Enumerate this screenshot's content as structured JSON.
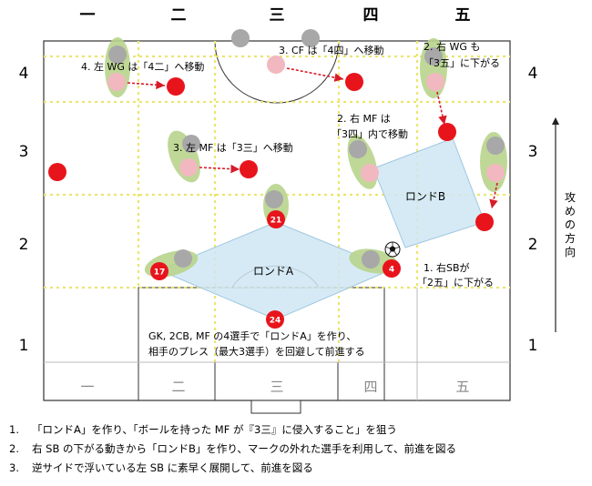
{
  "columns": [
    "一",
    "二",
    "三",
    "四",
    "五"
  ],
  "bottom_columns": [
    "一",
    "二",
    "三",
    "四",
    "五"
  ],
  "rows_left": [
    "4",
    "3",
    "2",
    "1"
  ],
  "rows_right": [
    "4",
    "3",
    "2",
    "1"
  ],
  "annotations": {
    "left_wg": "4. 左 WG は「4二」へ移動",
    "cf": "3. CF は「4四」へ移動",
    "right_wg_1": "2. 右 WG も",
    "right_wg_2": "「3五」に下がる",
    "right_mf_1": "2. 右 MF は",
    "right_mf_2": "「3四」内で移動",
    "left_mf": "3. 左 MF は「3三」へ移動",
    "right_sb_1": "1. 右SBが",
    "right_sb_2": "「2五」に下がる",
    "gk_line_1": "GK, 2CB, MF の4選手で「ロンドA」を作り、",
    "gk_line_2": "相手のプレス（最大3選手）を回避して前進する"
  },
  "rondo_a": "ロンドA",
  "rondo_b": "ロンドB",
  "direction": "攻めの方向",
  "player_numbers": {
    "mf": "21",
    "lcb": "17",
    "rcb": "4",
    "gk": "24"
  },
  "footnotes": [
    {
      "num": "1.",
      "text": "「ロンドA」を作り、「ボールを持った MF が『3三』に侵入すること」を狙う"
    },
    {
      "num": "2.",
      "text": "右 SB の下がる動きから「ロンドB」を作り、マークの外れた選手を利用して、前進を図る"
    },
    {
      "num": "3.",
      "text": "逆サイドで浮いている左 SB に素早く展開して、前進を図る"
    }
  ],
  "colors": {
    "team_red": "#e8141c",
    "opponent_pink": "#f2b8c0",
    "opponent_grey": "#a8a8a8",
    "highlight_green": "#b8d48c",
    "rondo_fill": "#cfe6f3",
    "grid_yellow": "#eee87a"
  }
}
